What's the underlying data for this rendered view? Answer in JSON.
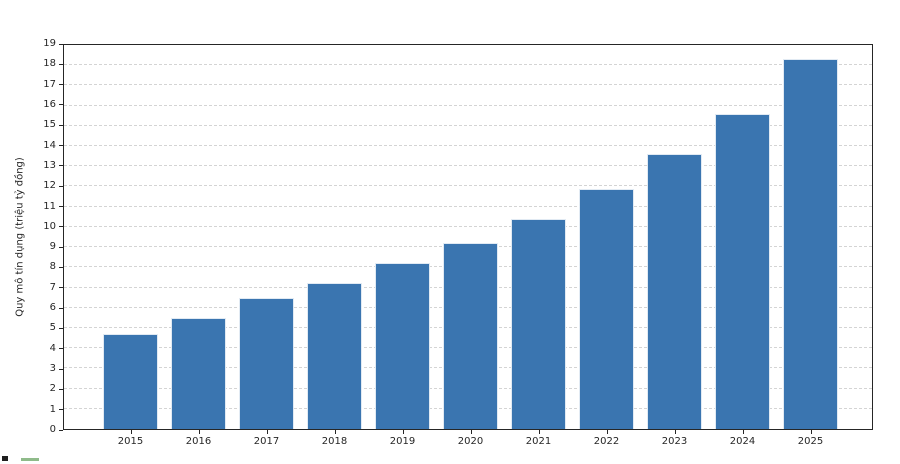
{
  "chart_data": {
    "type": "bar",
    "categories": [
      "2015",
      "2016",
      "2017",
      "2018",
      "2019",
      "2020",
      "2021",
      "2022",
      "2023",
      "2024",
      "2025"
    ],
    "values": [
      4.7,
      5.5,
      6.5,
      7.2,
      8.2,
      9.2,
      10.4,
      11.9,
      13.6,
      15.6,
      18.3
    ],
    "title": "",
    "xlabel": "",
    "ylabel": "Quy mô tín dụng (triệu tỷ đồng)",
    "ylim": [
      0,
      19
    ],
    "ytick_step": 1,
    "yticks": [
      0,
      1,
      2,
      3,
      4,
      5,
      6,
      7,
      8,
      9,
      10,
      11,
      12,
      13,
      14,
      15,
      16,
      17,
      18,
      19
    ],
    "grid": "horizontal-dashed",
    "legend_position": "none",
    "colors": {
      "bar_fill": "#3a75b0",
      "bar_edge": "#ffffff",
      "grid_line": "#d4d4d4",
      "axis_spine": "#262626",
      "tick_text": "#262626"
    }
  },
  "cropped_bottom_artifacts": {
    "dark_mark_color": "#1f1f1f",
    "green_bar_color": "#8fbb8a"
  }
}
